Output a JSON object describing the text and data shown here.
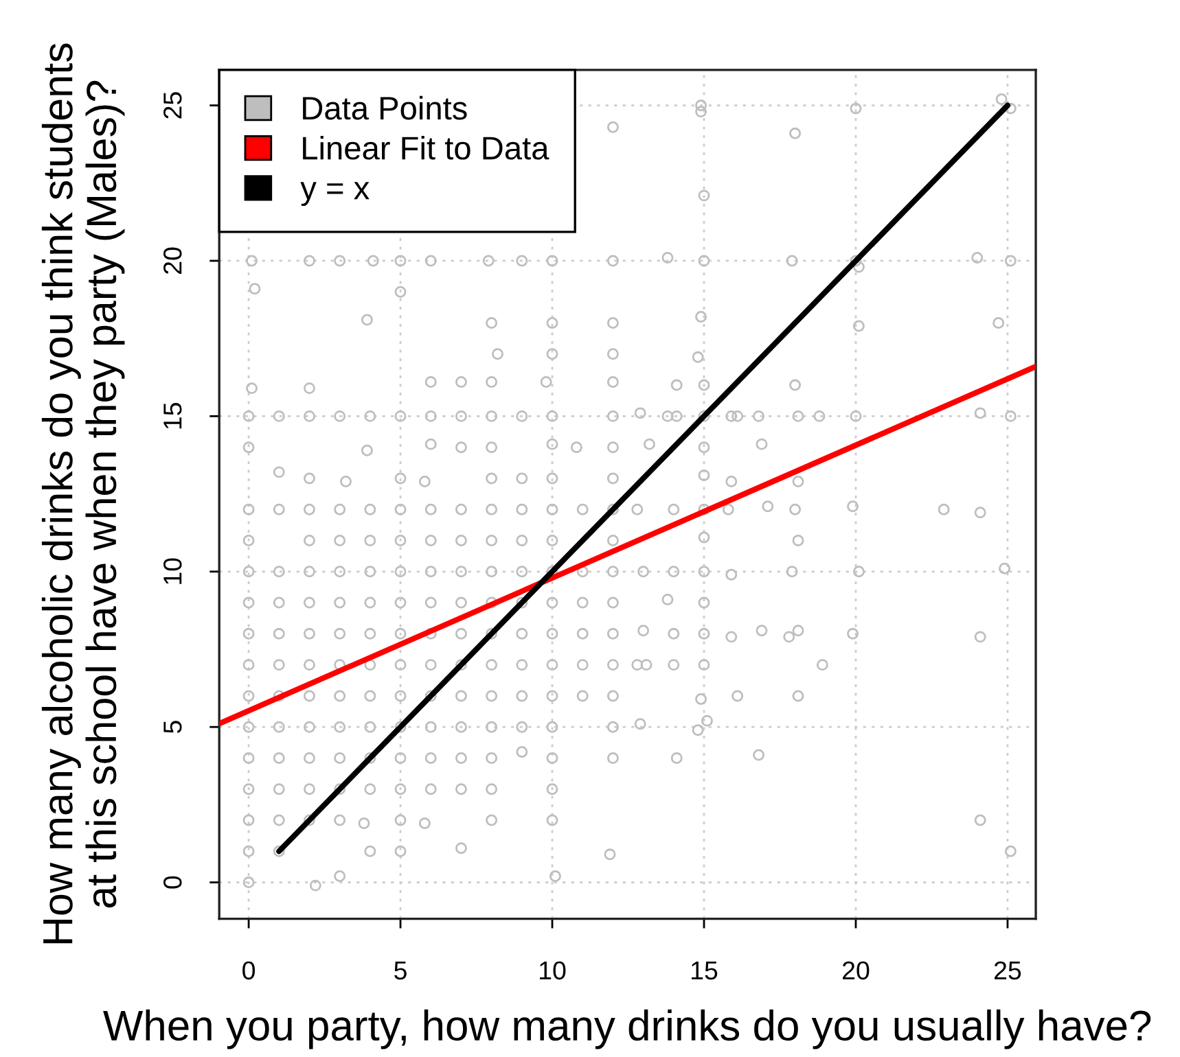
{
  "chart_data": {
    "type": "scatter",
    "xlabel": "When you party, how many drinks do you usually have?",
    "ylabel": "How many alcoholic drinks do you think students\nat this school have when they party (Males)?",
    "xlim": [
      -0.97,
      25.93
    ],
    "ylim": [
      -1.17,
      26.14
    ],
    "xticks": [
      0,
      5,
      10,
      15,
      20,
      25
    ],
    "yticks": [
      0,
      5,
      10,
      15,
      20,
      25
    ],
    "grid": true,
    "legend": "top left",
    "series": [
      {
        "name": "Data Points",
        "marker": "circle",
        "color": "#bebebe",
        "x": [
          0,
          2.2,
          3,
          10.1,
          0,
          1,
          4,
          5,
          7,
          11.9,
          0,
          1,
          2,
          3,
          3.8,
          5,
          5.8,
          8,
          10,
          0,
          1,
          2,
          3,
          4,
          5,
          6,
          7,
          8,
          10,
          0,
          1,
          2,
          3,
          4,
          5,
          6,
          7,
          8,
          9,
          10,
          12,
          0,
          1,
          2,
          3,
          4,
          5,
          6,
          7,
          8,
          9,
          10,
          12,
          0,
          1,
          2,
          3,
          4,
          5,
          6,
          7,
          8,
          9,
          10,
          11,
          12,
          0,
          1,
          2,
          3,
          4,
          5,
          6,
          7,
          8,
          9,
          10,
          11,
          12,
          0,
          1,
          2,
          3,
          4,
          5,
          6,
          7,
          8,
          9,
          10,
          11,
          12,
          0,
          1,
          2,
          3,
          4,
          5,
          6,
          7,
          8,
          9,
          10,
          11,
          12,
          0,
          1,
          2,
          3,
          4,
          5,
          6,
          7,
          8,
          9,
          10,
          11,
          12,
          0,
          2,
          3,
          4,
          5,
          6,
          7,
          8,
          9,
          10,
          12,
          0,
          1,
          2,
          3,
          4,
          5,
          6,
          7,
          8,
          9,
          10,
          11,
          12,
          1,
          2,
          3.2,
          5,
          5.8,
          8,
          9,
          10,
          12,
          0,
          3.9,
          6,
          7,
          8,
          10,
          10.8,
          12,
          0,
          1,
          2,
          3,
          4,
          5,
          6,
          7,
          8,
          9,
          10,
          12,
          0.1,
          2,
          6,
          7,
          8,
          9.8,
          12,
          8.2,
          10,
          12,
          3.9,
          8,
          10,
          12,
          0.2,
          5,
          0.1,
          2,
          3,
          4.1,
          5,
          6,
          7.9,
          9,
          10,
          12,
          12,
          14.9,
          14.9,
          20,
          24.8,
          25.1,
          18,
          15,
          13.8,
          15,
          17.9,
          20,
          20.1,
          24,
          25.1,
          14.9,
          20.1,
          24.7,
          14.8,
          14.1,
          15,
          18,
          12.9,
          13.8,
          14.1,
          15,
          15.9,
          16.1,
          16.8,
          18.1,
          18.8,
          20,
          24.1,
          25.1,
          13.2,
          15,
          16.9,
          15,
          15.9,
          18.1,
          12.8,
          14,
          15,
          15.8,
          17.1,
          18,
          19.9,
          22.9,
          24.1,
          15,
          18.1,
          13,
          14,
          15,
          15.9,
          17.9,
          20.1,
          24.9,
          13.8,
          15,
          13,
          14,
          15,
          15.9,
          16.9,
          17.8,
          18.1,
          19.9,
          24.1,
          12.8,
          13.1,
          14,
          15,
          18.9,
          14.9,
          16.1,
          18.1,
          12.9,
          14.8,
          15.1,
          14.1,
          16.8,
          24.1,
          25.1
        ],
        "values": [
          0,
          -0.1,
          0.2,
          0.2,
          1,
          1,
          1,
          1,
          1.1,
          0.9,
          2,
          2,
          2,
          2,
          1.9,
          2,
          1.9,
          2,
          2,
          3,
          3,
          3,
          3,
          3,
          3,
          3,
          3,
          3,
          3,
          4,
          4,
          4,
          4,
          4,
          4,
          4,
          4,
          4,
          4.2,
          4,
          4,
          5,
          5,
          5,
          5,
          5,
          5,
          5,
          5,
          5,
          5,
          5,
          5,
          6,
          6,
          6,
          6,
          6,
          6,
          6,
          6,
          6,
          6,
          6,
          6,
          6,
          7,
          7,
          7,
          7,
          7,
          7,
          7,
          7,
          7,
          7,
          7,
          7,
          7,
          8,
          8,
          8,
          8,
          8,
          8,
          8,
          8,
          8,
          8,
          8,
          8,
          8,
          9,
          9,
          9,
          9,
          9,
          9,
          9,
          9,
          9,
          9,
          9,
          9,
          9,
          10,
          10,
          10,
          10,
          10,
          10,
          10,
          10,
          10,
          10,
          10,
          10,
          10,
          11,
          11,
          11,
          11,
          11,
          11,
          11,
          11,
          11,
          11,
          11,
          12,
          12,
          12,
          12,
          12,
          12,
          12,
          12,
          12,
          12,
          12,
          12,
          12,
          13.2,
          13,
          12.9,
          13,
          12.9,
          13,
          13,
          13,
          13,
          14,
          13.9,
          14.1,
          14,
          14,
          14.1,
          14,
          14,
          15,
          15,
          15,
          15,
          15,
          15,
          15,
          15,
          15,
          15,
          15,
          15,
          15.9,
          15.9,
          16.1,
          16.1,
          16.1,
          16.1,
          16.1,
          17,
          17,
          17,
          18.1,
          18,
          18,
          18,
          19.1,
          19,
          20,
          20,
          20,
          20,
          20,
          20,
          20,
          20,
          20,
          20,
          24.3,
          25,
          24.8,
          24.9,
          25.2,
          24.9,
          24.1,
          22.1,
          20.1,
          20,
          20,
          20,
          19.8,
          20.1,
          20,
          18.2,
          17.9,
          18,
          16.9,
          16,
          16,
          16,
          15.1,
          15,
          15,
          15,
          15,
          15,
          15,
          15,
          15,
          15,
          15.1,
          15,
          14.1,
          14,
          14.1,
          13.1,
          12.9,
          12.9,
          12,
          12,
          12,
          12,
          12.1,
          12,
          12.1,
          12,
          11.9,
          11.1,
          11,
          10,
          10,
          10,
          9.9,
          10,
          10,
          10.1,
          9.1,
          9,
          8.1,
          8,
          8,
          7.9,
          8.1,
          7.9,
          8.1,
          8,
          7.9,
          7,
          7,
          7,
          7,
          7,
          5.9,
          6,
          6,
          5.1,
          4.9,
          5.2,
          4,
          4.1,
          2,
          1
        ]
      },
      {
        "name": "Linear Fit to Data",
        "type": "line",
        "color": "#ff0000",
        "x": [
          -0.97,
          25.93
        ],
        "values": [
          5.11,
          16.6
        ]
      },
      {
        "name": "y = x",
        "type": "line",
        "color": "#000000",
        "x": [
          1,
          25
        ],
        "values": [
          1,
          25
        ]
      }
    ]
  }
}
